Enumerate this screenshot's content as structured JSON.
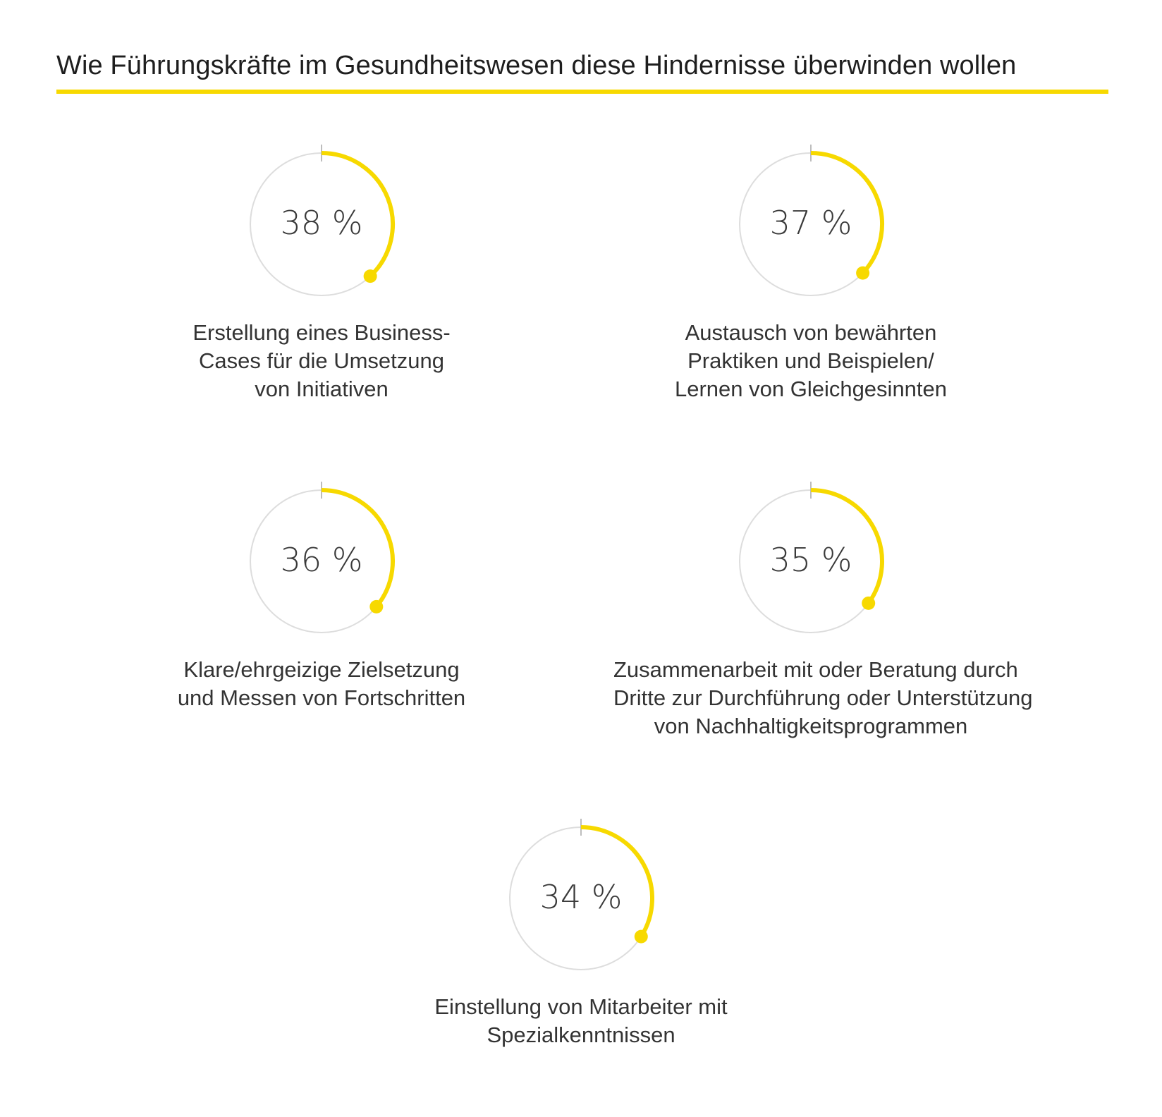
{
  "title": "Wie Führungskräfte im Gesundheitswesen diese Hindernisse überwinden wollen",
  "colors": {
    "accent": "#f7d900",
    "track": "#dddddd",
    "tick": "#bdbdbd",
    "text": "#333333"
  },
  "chart_data": {
    "type": "radial-gauge",
    "unit": "%",
    "max": 100,
    "items": [
      {
        "value": 38,
        "value_label": "38 %",
        "label_lines": [
          "Erstellung eines Business-",
          "Cases für die Umsetzung",
          "von Initiativen"
        ]
      },
      {
        "value": 37,
        "value_label": "37 %",
        "label_lines": [
          "Austausch von bewährten",
          "Praktiken und Beispielen/",
          "Lernen von Gleichgesinnten"
        ]
      },
      {
        "value": 36,
        "value_label": "36 %",
        "label_lines": [
          "Klare/ehrgeizige Zielsetzung",
          "und Messen von Fortschritten"
        ]
      },
      {
        "value": 35,
        "value_label": "35 %",
        "label_lines": [
          "Zusammenarbeit mit oder Beratung durch",
          "Dritte zur Durchführung oder Unterstützung",
          "von Nachhaltigkeitsprogrammen"
        ]
      },
      {
        "value": 34,
        "value_label": "34 %",
        "label_lines": [
          "Einstellung von Mitarbeiter mit",
          "Spezialkenntnissen"
        ]
      }
    ]
  }
}
